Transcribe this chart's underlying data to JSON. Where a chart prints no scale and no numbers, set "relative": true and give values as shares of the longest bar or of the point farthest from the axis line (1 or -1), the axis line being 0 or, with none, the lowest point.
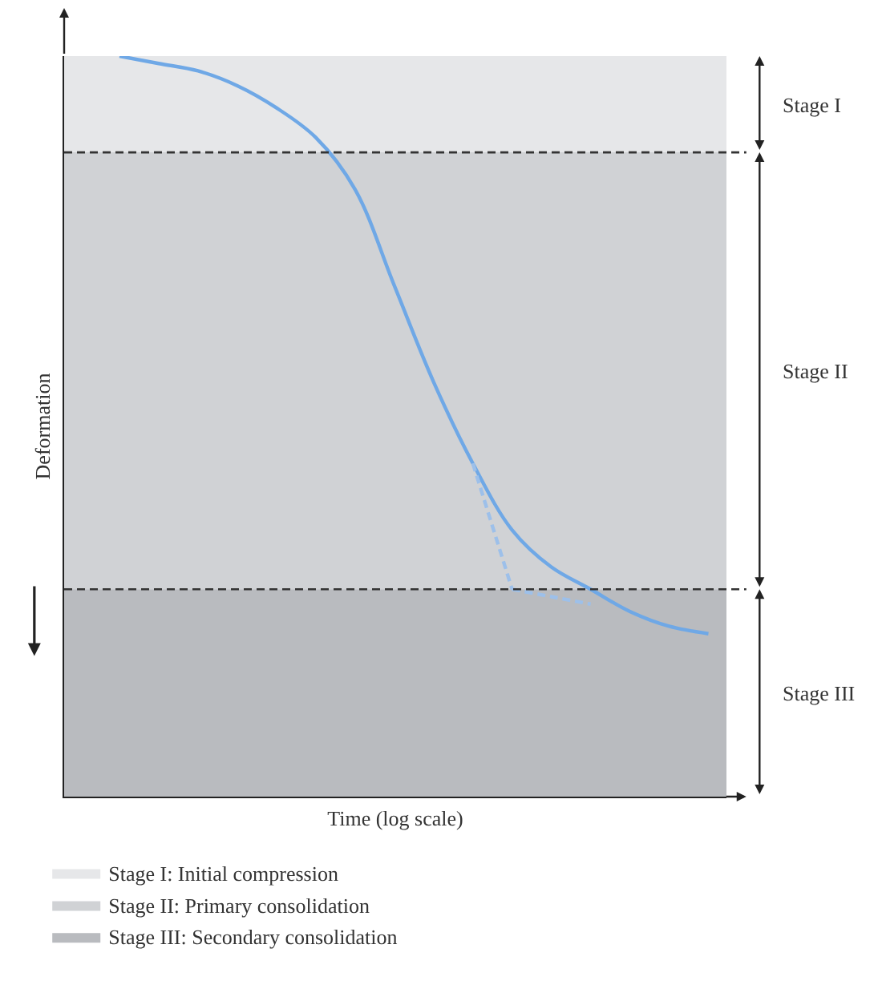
{
  "chart_data": {
    "type": "line",
    "relative": true,
    "xlabel": "Time (log scale)",
    "ylabel": "Deformation",
    "categories": [
      null,
      null,
      null,
      null,
      null,
      null,
      null,
      null,
      null,
      null,
      null,
      null,
      null,
      null,
      null,
      null
    ],
    "series": [
      {
        "color": "#6fa8e6",
        "line_style": "solid",
        "values": [
          1.0,
          0.99,
          0.98,
          0.96,
          0.93,
          0.89,
          0.82,
          0.69,
          0.56,
          0.45,
          0.36,
          0.31,
          0.28,
          0.25,
          0.23,
          0.22
        ]
      },
      {
        "color": "#9dc0ea",
        "line_style": "dashed",
        "values": [
          null,
          null,
          null,
          null,
          null,
          null,
          null,
          null,
          null,
          0.45,
          0.28,
          null,
          null,
          null,
          null,
          null
        ]
      },
      {
        "color": "#9dc0ea",
        "line_style": "dashed",
        "values": [
          null,
          null,
          null,
          null,
          null,
          null,
          null,
          null,
          null,
          null,
          0.28,
          0.27,
          0.26,
          null,
          null,
          null
        ]
      }
    ],
    "bands": [
      {
        "axis": "y",
        "from": 0.87,
        "to": 1.0,
        "label": "Stage I: Initial compression",
        "color": "#e6e7e9"
      },
      {
        "axis": "y",
        "from": 0.28,
        "to": 0.87,
        "label": "Stage II: Primary consolidation",
        "color": "#d0d2d5"
      },
      {
        "axis": "y",
        "from": 0.0,
        "to": 0.28,
        "label": "Stage III: Secondary consolidation",
        "color": "#b9bbbf"
      }
    ],
    "ref_lines": [
      {
        "axis": "y",
        "value": 0.87,
        "line_style": "dashed",
        "color": "#333333"
      },
      {
        "axis": "y",
        "value": 0.28,
        "line_style": "dashed",
        "color": "#333333"
      }
    ],
    "annotations": [
      "Stage I",
      "Stage II",
      "Stage III"
    ],
    "legend": "bottom left",
    "marker": "none",
    "tick_labels": false
  }
}
